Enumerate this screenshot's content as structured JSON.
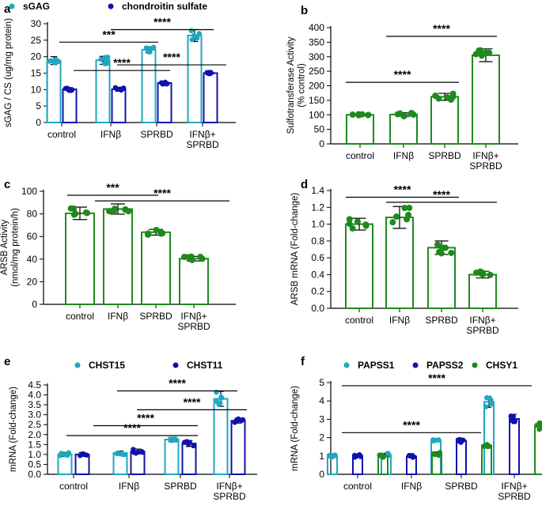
{
  "colors": {
    "teal": "#1fa7c2",
    "navy": "#1010b0",
    "green": "#1e8a1e"
  },
  "chart_data": [
    {
      "panel": "a",
      "type": "bar",
      "ylabel": "sGAG / CS (ug/mg protein)",
      "ylim": [
        0,
        30
      ],
      "yticks": [
        0,
        5,
        10,
        15,
        20,
        25,
        30
      ],
      "categories": [
        "control",
        "IFNβ",
        "SPRBD",
        "IFNβ+\nSPRBD"
      ],
      "series": [
        {
          "name": "sGAG",
          "color": "teal",
          "values": [
            18.8,
            18.9,
            22.1,
            26.4
          ],
          "sd": [
            1.2,
            1.2,
            0.9,
            1.8
          ]
        },
        {
          "name": "chondroitin sulfate",
          "color": "navy",
          "values": [
            10.1,
            10.1,
            12.0,
            15.0
          ],
          "sd": [
            0.5,
            0.6,
            0.4,
            0.3
          ]
        }
      ],
      "significance": [
        {
          "label": "***",
          "y": 24.4
        },
        {
          "label": "****",
          "y": 28.2
        },
        {
          "label": "****",
          "y": 15.8
        },
        {
          "label": "****",
          "y": 17.5
        }
      ]
    },
    {
      "panel": "b",
      "type": "bar",
      "ylabel": "Sulfotransferase Activity (% control)",
      "ylim": [
        0,
        400
      ],
      "yticks": [
        0,
        50,
        100,
        150,
        200,
        250,
        300,
        350,
        400
      ],
      "categories": [
        "control",
        "IFNβ",
        "SPRBD",
        "IFNβ+\nSPRBD"
      ],
      "series": [
        {
          "name": "Sulfotransferase",
          "color": "green",
          "values": [
            100,
            101,
            162,
            305
          ],
          "sd": [
            3,
            6,
            12,
            22
          ]
        }
      ],
      "significance": [
        {
          "label": "****",
          "y": 212
        },
        {
          "label": "****",
          "y": 370
        }
      ]
    },
    {
      "panel": "c",
      "type": "bar",
      "ylabel": "ARSB Activity (nmol/mg protein/h)",
      "ylim": [
        0,
        100
      ],
      "yticks": [
        0,
        20,
        40,
        60,
        80,
        100
      ],
      "categories": [
        "control",
        "IFNβ",
        "SPRBD",
        "IFNβ+\nSPRBD"
      ],
      "series": [
        {
          "name": "ARSB Activity",
          "color": "green",
          "values": [
            80.5,
            84.3,
            63.8,
            40.4
          ],
          "sd": [
            5.5,
            4.5,
            2.5,
            2.0
          ]
        }
      ],
      "significance": [
        {
          "label": "***",
          "y": 96.5
        },
        {
          "label": "****",
          "y": 91.5
        }
      ]
    },
    {
      "panel": "d",
      "type": "bar",
      "ylabel": "ARSB mRNA (Fold-change)",
      "ylim": [
        0,
        1.4
      ],
      "yticks": [
        0,
        0.2,
        0.4,
        0.6,
        0.8,
        1.0,
        1.2,
        1.4
      ],
      "categories": [
        "control",
        "IFNβ",
        "SPRBD",
        "IFNβ+\nSPRBD"
      ],
      "series": [
        {
          "name": "ARSB mRNA",
          "color": "green",
          "values": [
            1.0,
            1.08,
            0.72,
            0.4
          ],
          "sd": [
            0.07,
            0.13,
            0.08,
            0.04
          ]
        }
      ],
      "significance": [
        {
          "label": "****",
          "y": 1.32
        },
        {
          "label": "****",
          "y": 1.26
        }
      ]
    },
    {
      "panel": "e",
      "type": "bar",
      "ylabel": "mRNA (Fold-change)",
      "ylim": [
        0,
        4.5
      ],
      "yticks": [
        0,
        0.5,
        1.0,
        1.5,
        2.0,
        2.5,
        3.0,
        3.5,
        4.0,
        4.5
      ],
      "categories": [
        "control",
        "IFNβ",
        "SPRBD",
        "IFNβ+\nSPRBD"
      ],
      "series": [
        {
          "name": "CHST15",
          "color": "teal",
          "values": [
            1.0,
            1.07,
            1.75,
            3.8
          ],
          "sd": [
            0.1,
            0.1,
            0.1,
            0.38
          ]
        },
        {
          "name": "CHST11",
          "color": "navy",
          "values": [
            1.0,
            1.15,
            1.55,
            2.7
          ],
          "sd": [
            0.1,
            0.12,
            0.15,
            0.12
          ]
        }
      ],
      "significance": [
        {
          "label": "****",
          "y": 1.95
        },
        {
          "label": "****",
          "y": 4.2
        },
        {
          "label": "****",
          "y": 2.45
        },
        {
          "label": "****",
          "y": 3.25
        }
      ]
    },
    {
      "panel": "f",
      "type": "bar",
      "ylabel": "mRNA (Fold-change)",
      "ylim": [
        0,
        5.0
      ],
      "yticks": [
        0,
        1.0,
        2.0,
        3.0,
        4.0,
        5.0
      ],
      "categories": [
        "control",
        "IFNβ",
        "SPRBD",
        "IFNβ+\nSPRBD"
      ],
      "series": [
        {
          "name": "PAPSS1",
          "color": "teal",
          "values": [
            1.0,
            1.07,
            1.85,
            3.95
          ],
          "sd": [
            0.1,
            0.08,
            0.07,
            0.3
          ]
        },
        {
          "name": "PAPSS2",
          "color": "navy",
          "values": [
            1.0,
            0.97,
            1.83,
            3.02
          ],
          "sd": [
            0.08,
            0.08,
            0.1,
            0.25
          ]
        },
        {
          "name": "CHSY1",
          "color": "green",
          "values": [
            1.0,
            1.12,
            1.58,
            2.64
          ],
          "sd": [
            0.08,
            0.1,
            0.1,
            0.22
          ]
        }
      ],
      "significance": [
        {
          "label": "****",
          "y": 2.27
        },
        {
          "label": "****",
          "y": 4.83
        }
      ]
    }
  ]
}
